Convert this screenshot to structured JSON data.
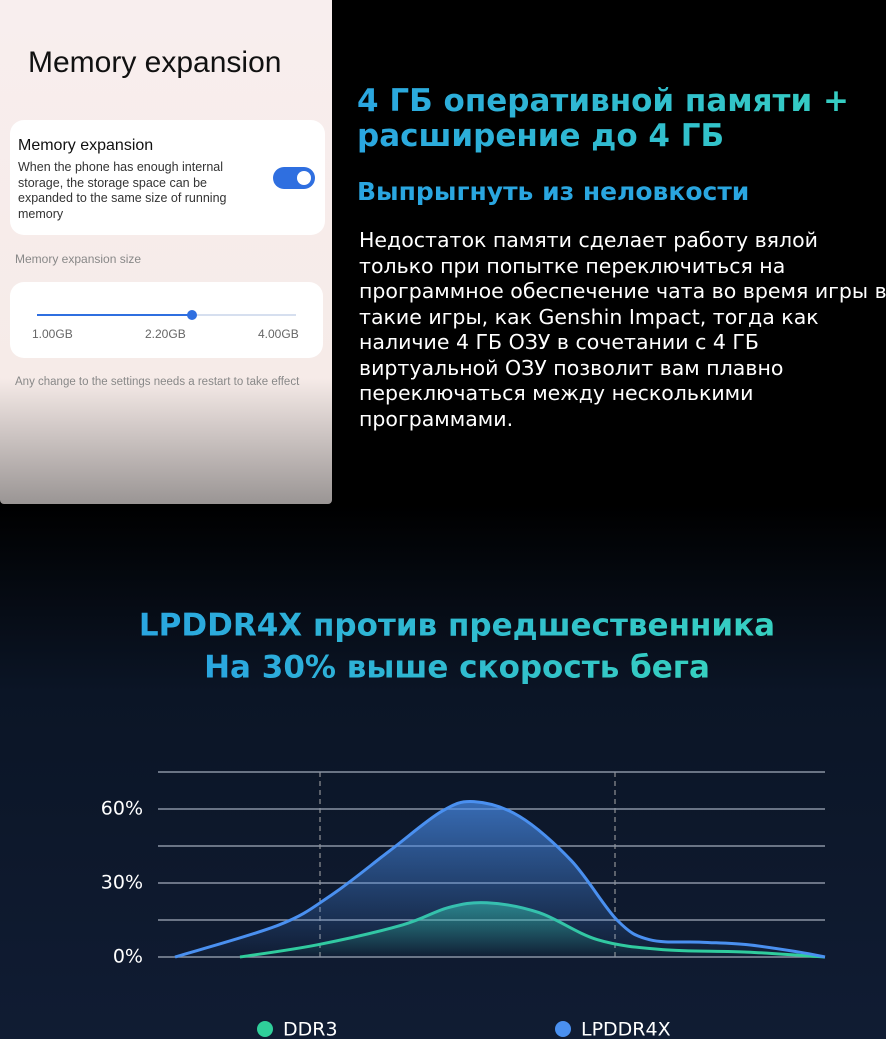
{
  "settings": {
    "title": "Memory expansion",
    "toggle_card": {
      "label": "Memory expansion",
      "description": "When the phone has enough internal storage, the storage space can be expanded to the same size of running memory"
    },
    "size_label": "Memory expansion size",
    "slider_labels": [
      "1.00GB",
      "2.20GB",
      "4.00GB"
    ],
    "note": "Any change to the settings needs a restart to take effect"
  },
  "promo": {
    "heading": "4 ГБ оперативной памяти + расширение до 4 ГБ",
    "subheading": "Выпрыгнуть из неловкости",
    "body": "Недостаток памяти сделает работу вялой только при попытке переключиться на программное обеспечение чата во время игры в такие игры, как Genshin Impact, тогда как наличие 4 ГБ ОЗУ в сочетании с 4 ГБ виртуальной ОЗУ позволит вам плавно переключаться между несколькими программами."
  },
  "chart_data": {
    "type": "area",
    "title": [
      "LPDDR4X против предшественника",
      "На 30% выше скорость бега"
    ],
    "xlim": [
      0,
      100
    ],
    "ylim": [
      0,
      75
    ],
    "yticks": [
      {
        "value": 0,
        "label": "0%"
      },
      {
        "value": 30,
        "label": "30%"
      },
      {
        "value": 60,
        "label": "60%"
      }
    ],
    "gridlines": [
      0,
      15,
      30,
      45,
      60,
      75
    ],
    "series": [
      {
        "name": "DDR3",
        "color": "#2fcf9a",
        "x": [
          10,
          22,
          35,
          42,
          48,
          56,
          65,
          75,
          88,
          100
        ],
        "values": [
          0,
          5,
          13,
          20,
          22,
          18,
          7,
          3,
          2,
          0
        ]
      },
      {
        "name": "LPDDR4X",
        "color": "#4a90f0",
        "x": [
          0,
          16,
          24,
          33,
          41,
          46,
          53,
          61,
          68,
          73,
          81,
          88,
          96,
          100
        ],
        "values": [
          0,
          13,
          25,
          43,
          59,
          63,
          57,
          39,
          15,
          7,
          6,
          5,
          2,
          0
        ]
      }
    ]
  }
}
